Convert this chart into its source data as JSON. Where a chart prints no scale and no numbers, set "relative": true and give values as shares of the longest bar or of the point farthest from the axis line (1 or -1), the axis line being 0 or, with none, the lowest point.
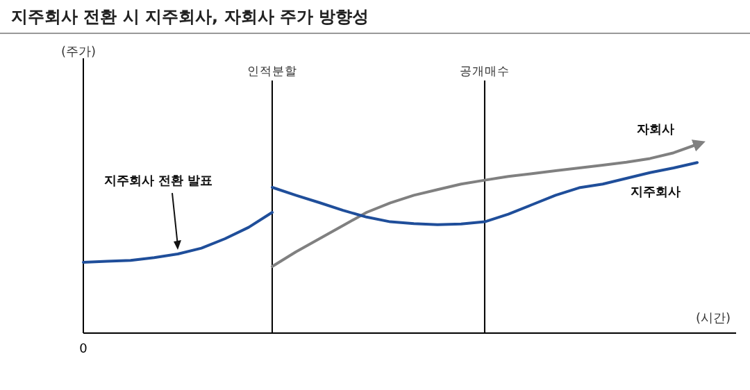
{
  "chart_data": {
    "type": "line",
    "title": "지주회사 전환 시 지주회사, 자회사 주가 방향성",
    "xlabel": "(시간)",
    "relative": true,
    "categories": [
      null,
      null,
      null,
      null,
      null,
      null,
      null,
      null,
      null,
      null,
      null,
      null,
      null,
      null,
      null,
      null,
      null,
      null,
      null,
      null,
      null,
      null,
      null,
      null,
      null,
      null,
      null,
      null
    ],
    "annotations": [
      "지주회사 전환 발표",
      "0",
      "(주가)",
      "인적분할",
      "공개매수"
    ],
    "series": [
      {
        "name": "자회사",
        "color": "#808080",
        "values": [
          null,
          null,
          null,
          null,
          null,
          null,
          null,
          null,
          0.353,
          0.43,
          0.5,
          0.57,
          0.64,
          0.69,
          0.73,
          0.76,
          0.79,
          0.81,
          0.83,
          0.845,
          0.86,
          0.875,
          0.89,
          0.905,
          0.925,
          0.955,
          1,
          null
        ]
      },
      {
        "name": "지주회사",
        "color": "#1f4e9a",
        "values": [
          null,
          null,
          null,
          null,
          null,
          null,
          null,
          null,
          0.772,
          0.73,
          0.691,
          0.65,
          0.615,
          0.59,
          0.58,
          0.574,
          0.578,
          0.59,
          0.63,
          0.68,
          0.73,
          0.77,
          0.79,
          0.82,
          0.85,
          0.875,
          0.904,
          null
        ]
      },
      {
        "color": "#1f4e9a",
        "values": [
          0.375,
          0.38,
          0.385,
          0.4,
          0.419,
          0.45,
          0.5,
          0.56,
          0.64,
          null,
          null,
          null,
          null,
          null,
          null,
          null,
          null,
          null,
          null,
          null,
          null,
          null,
          null,
          null,
          null,
          null,
          null,
          null
        ]
      }
    ]
  }
}
